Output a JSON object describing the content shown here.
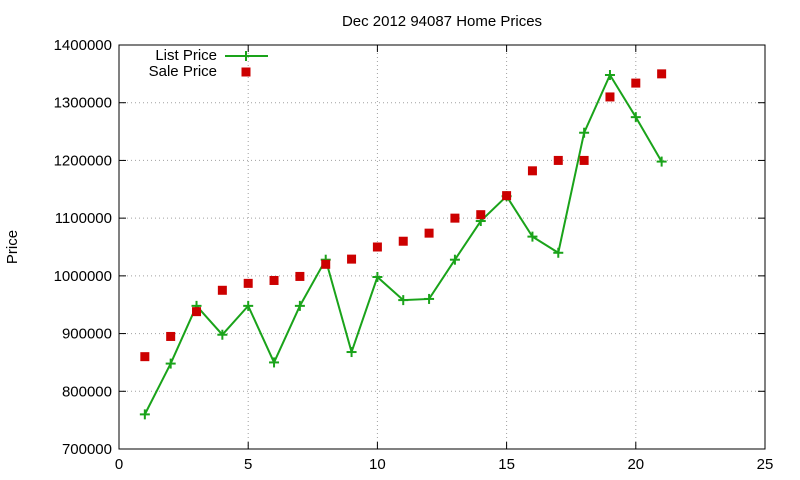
{
  "chart_data": {
    "type": "line",
    "title": "Dec 2012 94087 Home Prices",
    "xlabel": "",
    "ylabel": "Price",
    "xlim": [
      0,
      25
    ],
    "ylim": [
      700000,
      1400000
    ],
    "xticks": [
      0,
      5,
      10,
      15,
      20,
      25
    ],
    "yticks": [
      700000,
      800000,
      900000,
      1000000,
      1100000,
      1200000,
      1300000,
      1400000
    ],
    "grid": true,
    "legend_position": "top-left",
    "series": [
      {
        "name": "List Price",
        "style": "line-with-plus-markers",
        "color": "#1aa31a",
        "x": [
          1,
          2,
          3,
          4,
          5,
          6,
          7,
          8,
          9,
          10,
          11,
          12,
          13,
          14,
          15,
          16,
          17,
          18,
          19,
          20,
          21
        ],
        "y": [
          760000,
          848000,
          948000,
          898000,
          948000,
          850000,
          948000,
          1028000,
          868000,
          998000,
          958000,
          960000,
          1028000,
          1095000,
          1138000,
          1068000,
          1040000,
          1248000,
          1348000,
          1275000,
          1198000
        ]
      },
      {
        "name": "Sale Price",
        "style": "square-markers",
        "color": "#cc0000",
        "x": [
          1,
          2,
          3,
          4,
          5,
          6,
          7,
          8,
          9,
          10,
          11,
          12,
          13,
          14,
          15,
          16,
          17,
          18,
          19,
          20,
          21
        ],
        "y": [
          860000,
          895000,
          938000,
          975000,
          987000,
          992000,
          999000,
          1020000,
          1029000,
          1050000,
          1060000,
          1074000,
          1100000,
          1106000,
          1139000,
          1182000,
          1200000,
          1200000,
          1310000,
          1334000,
          1350000
        ]
      }
    ]
  }
}
